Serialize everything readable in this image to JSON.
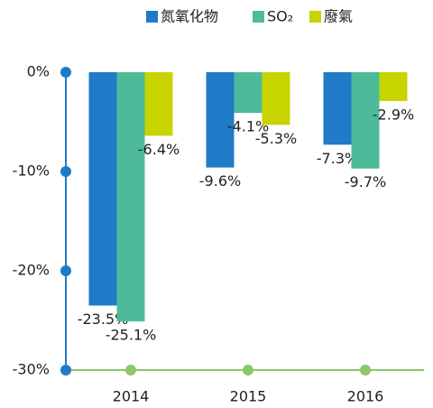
{
  "chart_data": {
    "type": "bar",
    "categories": [
      "2014",
      "2015",
      "2016"
    ],
    "series": [
      {
        "name": "氮氧化物",
        "color": "#1f7bc8",
        "values": [
          -23.5,
          -9.6,
          -7.3
        ],
        "value_labels": [
          "-23.5%",
          "-9.6%",
          "-7.3%"
        ]
      },
      {
        "name": "SO₂",
        "color": "#4dbb9a",
        "values": [
          -25.1,
          -4.1,
          -9.7
        ],
        "value_labels": [
          "-25.1%",
          "-4.1%",
          "-9.7%"
        ]
      },
      {
        "name": "廢氣",
        "color": "#c8d400",
        "values": [
          -6.4,
          -5.3,
          -2.9
        ],
        "value_labels": [
          "-6.4%",
          "-5.3%",
          "-2.9%"
        ]
      }
    ],
    "ylim": [
      -30,
      0
    ],
    "yticks": [
      {
        "value": 0,
        "label": "0%"
      },
      {
        "value": -10,
        "label": "-10%"
      },
      {
        "value": -20,
        "label": "-20%"
      },
      {
        "value": -30,
        "label": "-30%"
      }
    ]
  }
}
